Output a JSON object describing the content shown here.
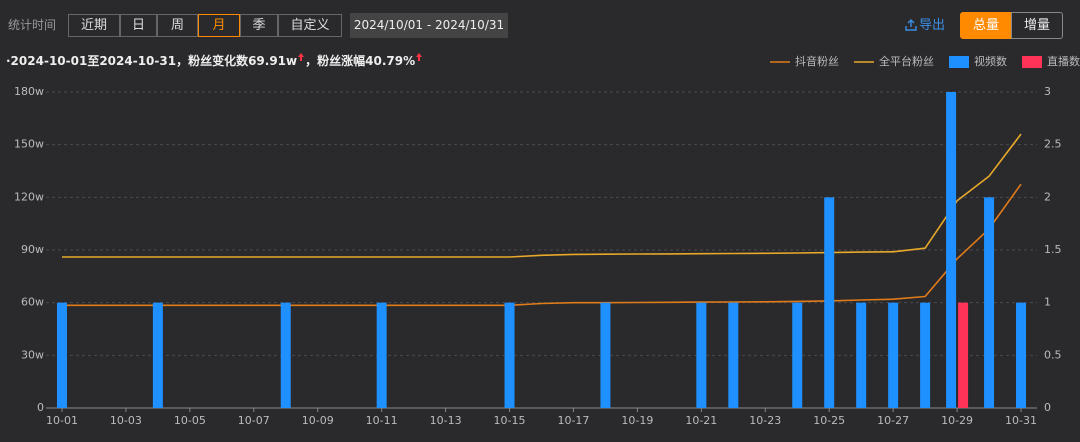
{
  "toolbar": {
    "label": "统计时间",
    "periods": [
      {
        "label": "近期"
      },
      {
        "label": "日"
      },
      {
        "label": "周"
      },
      {
        "label": "月",
        "selected": true
      },
      {
        "label": "季"
      },
      {
        "label": "自定义"
      }
    ],
    "date_range": "2024/10/01  -  2024/10/31",
    "export": "导出",
    "modes": [
      {
        "label": "总量",
        "selected": true
      },
      {
        "label": "增量"
      }
    ]
  },
  "summary": {
    "parts": [
      "·2024-10-01至2024-10-31，粉丝变化数69.91w",
      "，粉丝涨幅40.79%"
    ]
  },
  "chart_data": {
    "type": "combo",
    "categories": [
      "10-01",
      null,
      "10-03",
      null,
      "10-05",
      null,
      "10-07",
      null,
      "10-09",
      null,
      "10-11",
      null,
      "10-13",
      null,
      "10-15",
      null,
      "10-17",
      null,
      "10-19",
      null,
      "10-21",
      null,
      "10-23",
      null,
      "10-25",
      null,
      "10-27",
      null,
      "10-29",
      null,
      "10-31"
    ],
    "series": [
      {
        "name": "抖音粉丝",
        "type": "line",
        "color": "#e07b1a",
        "values": [
          58.5,
          58.5,
          58.5,
          58.5,
          58.5,
          58.5,
          58.5,
          58.5,
          58.5,
          58.5,
          58.5,
          58.5,
          58.5,
          58.5,
          58.5,
          59.5,
          60,
          60,
          60.1,
          60.2,
          60.3,
          60.4,
          60.5,
          60.7,
          61,
          61.5,
          62,
          63.5,
          85,
          102,
          127.5
        ]
      },
      {
        "name": "全平台粉丝",
        "type": "line",
        "color": "#e8a92a",
        "values": [
          86,
          86,
          86,
          86,
          86,
          86,
          86,
          86,
          86,
          86,
          86,
          86,
          86,
          86,
          86,
          87,
          87.5,
          87.6,
          87.7,
          87.8,
          87.9,
          88,
          88.1,
          88.3,
          88.5,
          88.8,
          89,
          91,
          118,
          132,
          156
        ]
      },
      {
        "name": "视频数",
        "type": "bar",
        "axis": "y2",
        "color": "#1e90ff",
        "values": [
          1,
          0,
          0,
          1,
          0,
          0,
          0,
          1,
          0,
          0,
          1,
          0,
          0,
          0,
          1,
          0,
          0,
          1,
          0,
          0,
          1,
          1,
          0,
          1,
          2,
          1,
          1,
          1,
          3,
          2,
          1
        ]
      },
      {
        "name": "直播数",
        "type": "bar",
        "axis": "y2",
        "color": "#ff3358",
        "values": [
          0,
          0,
          0,
          0,
          0,
          0,
          0,
          0,
          0,
          0,
          0,
          0,
          0,
          0,
          0,
          0,
          0,
          0,
          0,
          0,
          0,
          0,
          0,
          0,
          0,
          0,
          0,
          0,
          1,
          0,
          0
        ]
      }
    ],
    "ylim": [
      0,
      180
    ],
    "yticks": [
      0,
      {
        "value": 30,
        "label": "30w"
      },
      {
        "value": 60,
        "label": "60w"
      },
      {
        "value": 90,
        "label": "90w"
      },
      {
        "value": 120,
        "label": "120w"
      },
      {
        "value": 150,
        "label": "150w"
      },
      {
        "value": 180,
        "label": "180w"
      }
    ],
    "y2lim": [
      0,
      3
    ],
    "y2ticks": [
      0,
      0.5,
      1,
      1.5,
      2,
      2.5,
      3
    ],
    "grid": true,
    "legend": "top-right"
  }
}
